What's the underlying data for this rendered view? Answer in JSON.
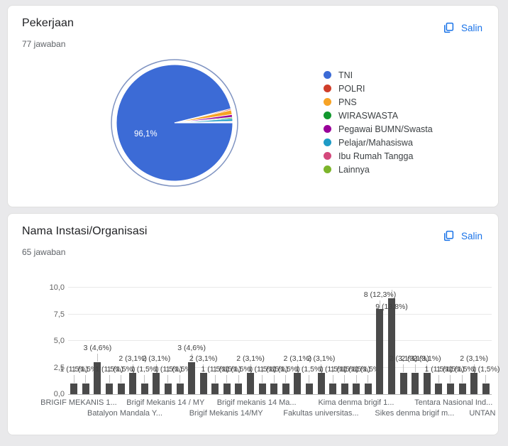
{
  "copy_button": {
    "label": "Salin",
    "color": "#1a73e8"
  },
  "cards": [
    {
      "title": "Pekerjaan",
      "answers": "77 jawaban"
    },
    {
      "title": "Nama Instasi/Organisasi",
      "answers": "65 jawaban"
    }
  ],
  "chart_data": [
    {
      "type": "pie",
      "title": "Pekerjaan",
      "total_label": "77 jawaban",
      "legend_position": "right",
      "big_slice_value_label": "96,1%",
      "slices": [
        {
          "label": "TNI",
          "color": "#3c6bd6",
          "pct": 96.1,
          "value_label": "96,1%",
          "start_deg": 0,
          "sweep_deg": 346
        },
        {
          "label": "POLRI",
          "color": "#cf3e2a",
          "start_deg": 346,
          "sweep_deg": 1.2
        },
        {
          "label": "PNS",
          "color": "#f7a325",
          "start_deg": 347.2,
          "sweep_deg": 4.6
        },
        {
          "label": "WIRASWASTA",
          "color": "#12982e",
          "start_deg": 354.4,
          "sweep_deg": 1.4
        },
        {
          "label": "Pegawai BUMN/Swasta",
          "color": "#990099",
          "start_deg": 351.8,
          "sweep_deg": 2.6
        },
        {
          "label": "Pelajar/Mahasiswa",
          "color": "#1e9bc6",
          "start_deg": 355.8,
          "sweep_deg": 2.6
        },
        {
          "label": "Ibu Rumah Tangga",
          "color": "#d4497c",
          "start_deg": 358.4,
          "sweep_deg": 0.9
        },
        {
          "label": "Lainnya",
          "color": "#7cb52b",
          "start_deg": 359.3,
          "sweep_deg": 0.7
        }
      ]
    },
    {
      "type": "bar",
      "title": "Nama Instasi/Organisasi",
      "bar_color": "#4a4a4a",
      "ylim": [
        0,
        10
      ],
      "y_ticks": [
        "0,0",
        "2,5",
        "5,0",
        "7,5",
        "10,0"
      ],
      "grid": true,
      "bars": [
        {
          "v": 1,
          "label": "1 (1,5%)"
        },
        {
          "v": 1,
          "label": "1 (1,5%)"
        },
        {
          "v": 3,
          "label": "3 (4,6%)"
        },
        {
          "v": 1,
          "label": "1 (1,5%)"
        },
        {
          "v": 1,
          "label": "1 (1,5%)"
        },
        {
          "v": 2,
          "label": "2 (3,1%)"
        },
        {
          "v": 1,
          "label": "1 (1,5%)"
        },
        {
          "v": 2,
          "label": "2 (3,1%)"
        },
        {
          "v": 1,
          "label": "1 (1,5%)"
        },
        {
          "v": 1,
          "label": "1 (1,5%)"
        },
        {
          "v": 3,
          "label": "3 (4,6%)"
        },
        {
          "v": 2,
          "label": "2 (3,1%)"
        },
        {
          "v": 1,
          "label": "1 (1,5%)"
        },
        {
          "v": 1,
          "label": "1 (1,5%)"
        },
        {
          "v": 1,
          "label": "1 (1,5%)"
        },
        {
          "v": 2,
          "label": "2 (3,1%)"
        },
        {
          "v": 1,
          "label": "1 (1,5%)"
        },
        {
          "v": 1,
          "label": "1 (1,5%)"
        },
        {
          "v": 1,
          "label": "1 (1,5%)"
        },
        {
          "v": 2,
          "label": "2 (3,1%)"
        },
        {
          "v": 1,
          "label": "1 (1,5%)"
        },
        {
          "v": 2,
          "label": "2 (3,1%)"
        },
        {
          "v": 1,
          "label": "1 (1,5%)"
        },
        {
          "v": 1,
          "label": "1 (1,5%)"
        },
        {
          "v": 1,
          "label": "1 (1,5%)"
        },
        {
          "v": 1,
          "label": "1 (1,5%)"
        },
        {
          "v": 8,
          "label": "8 (12,3%)"
        },
        {
          "v": 9,
          "label": "9 (13,8%)",
          "dy": -32
        },
        {
          "v": 2,
          "label": "2 (3,1%)"
        },
        {
          "v": 2,
          "label": "2 (3,1%)"
        },
        {
          "v": 2,
          "label": "2 (3,1%)"
        },
        {
          "v": 1,
          "label": "1 (1,5%)"
        },
        {
          "v": 1,
          "label": "1 (1,5%)"
        },
        {
          "v": 1,
          "label": "1 (1,5%)"
        },
        {
          "v": 2,
          "label": "2 (3,1%)"
        },
        {
          "v": 1,
          "label": "1 (1,5%)"
        }
      ],
      "x_labels": [
        {
          "text": "BRIGIF MEKANIS 1...",
          "row": 1,
          "cx_pct": 2.5
        },
        {
          "text": "Batalyon Mandala Y...",
          "row": 2,
          "cx_pct": 13.4
        },
        {
          "text": "Brigif Mekanis 14 / MY",
          "row": 1,
          "cx_pct": 23.0
        },
        {
          "text": "Brigif Mekanis 14/MY",
          "row": 2,
          "cx_pct": 37.3
        },
        {
          "text": "Brigif mekanis 14 Ma...",
          "row": 1,
          "cx_pct": 44.5
        },
        {
          "text": "Fakultas universitas...",
          "row": 2,
          "cx_pct": 59.7
        },
        {
          "text": "Kima denma brigif 1...",
          "row": 1,
          "cx_pct": 68.0
        },
        {
          "text": "Sikes denma brigif m...",
          "row": 2,
          "cx_pct": 81.8
        },
        {
          "text": "Tentara Nasional Ind...",
          "row": 1,
          "cx_pct": 91.0
        },
        {
          "text": "UNTAN",
          "row": 2,
          "cx_pct": 97.8
        }
      ]
    }
  ]
}
